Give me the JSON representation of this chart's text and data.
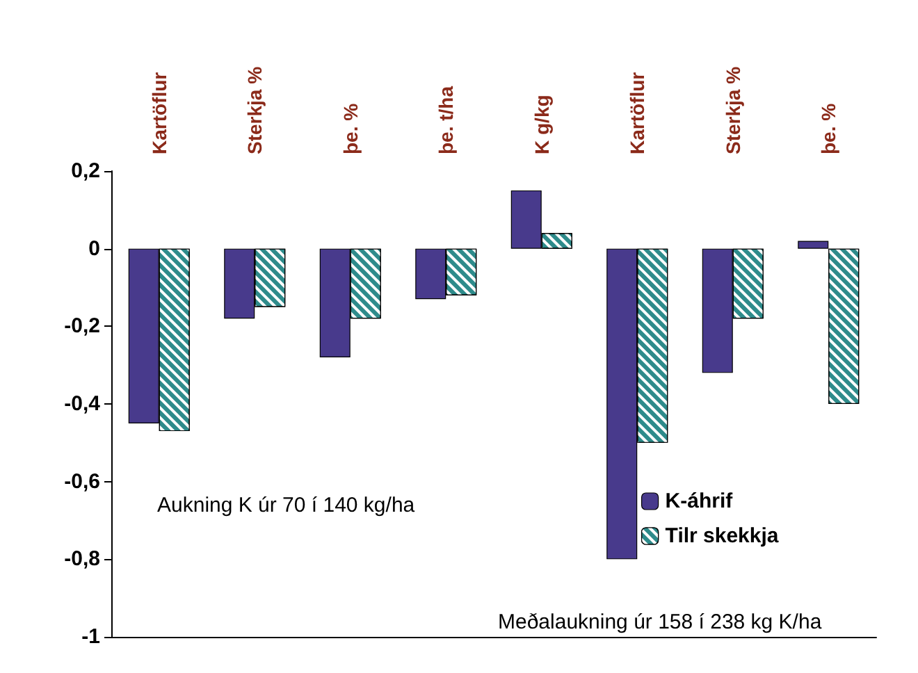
{
  "chart_data": {
    "type": "bar",
    "categories": [
      "Kartöflur",
      "Sterkja %",
      "þe. %",
      "þe. t/ha",
      "K g/kg",
      "Kartöflur",
      "Sterkja %",
      "þe. %"
    ],
    "series": [
      {
        "name": "K-áhrif",
        "color": "#483a8c",
        "values": [
          -0.45,
          -0.18,
          -0.28,
          -0.13,
          0.15,
          -0.8,
          -0.32,
          0.02
        ]
      },
      {
        "name": "Tilr skekkja",
        "color": "#2e8b8b",
        "values": [
          -0.47,
          -0.15,
          -0.18,
          -0.12,
          0.04,
          -0.5,
          -0.18,
          -0.4
        ]
      }
    ],
    "ylim": [
      -1,
      0.2
    ],
    "yticks": [
      -1,
      {
        "value": -0.8,
        "label": "-0,8"
      },
      {
        "value": -0.6,
        "label": "-0,6"
      },
      {
        "value": -0.4,
        "label": "-0,4"
      },
      {
        "value": -0.2,
        "label": "-0,2"
      },
      0,
      {
        "value": 0.2,
        "label": "0,2"
      }
    ],
    "annotations": [
      "Aukning K úr 70 í 140 kg/ha",
      "Meðalaukning úr 158 í 238 kg K/ha"
    ],
    "legend": "bottom right",
    "grid": false
  }
}
